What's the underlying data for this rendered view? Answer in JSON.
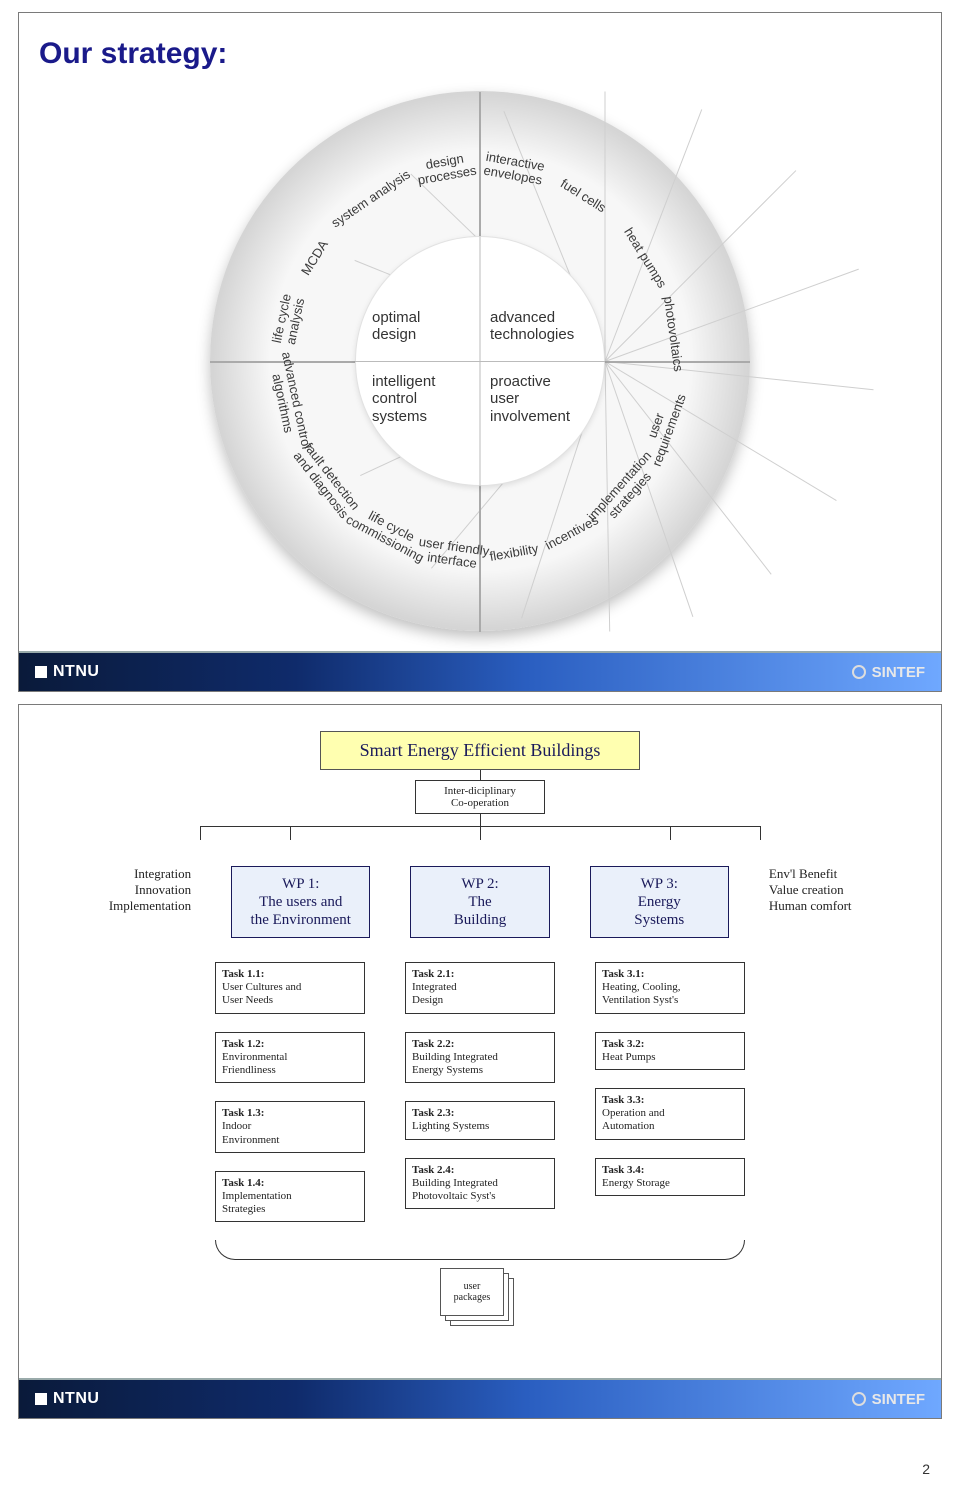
{
  "page_number": "2",
  "footer": {
    "left": "NTNU",
    "right": "SINTEF"
  },
  "slide1": {
    "title": "Our strategy:",
    "core_labels": {
      "tl": "optimal\ndesign",
      "tr": "advanced\ntechnologies",
      "bl": "intelligent\ncontrol\nsystems",
      "br": "proactive\nuser\ninvolvement"
    },
    "segments": [
      {
        "label": "design\nprocesses",
        "angle": -100
      },
      {
        "label": "interactive\nenvelopes",
        "angle": -80
      },
      {
        "label": "fuel cells",
        "angle": -58
      },
      {
        "label": "heat pumps",
        "angle": -32
      },
      {
        "label": "photovoltaics",
        "angle": -8
      },
      {
        "label": "user\nrequirements",
        "angle": 20
      },
      {
        "label": "implementation\nstrategies",
        "angle": 42
      },
      {
        "label": "incentives",
        "angle": 62
      },
      {
        "label": "flexibility",
        "angle": 80
      },
      {
        "label": "user friendly\ninterface",
        "angle": 98
      },
      {
        "label": "life cycle\ncommissioning",
        "angle": 118
      },
      {
        "label": "fault detection\nand diagnosis",
        "angle": 142
      },
      {
        "label": "advanced control\nalgorithms",
        "angle": 168
      },
      {
        "label": "life cycle\nanalysis",
        "angle": 192
      },
      {
        "label": "MCDA",
        "angle": 212
      },
      {
        "label": "system analysis",
        "angle": 236
      }
    ],
    "colors": {
      "title": "#1a1a8a",
      "disc_edge": "#bdbdbd",
      "disc_mid": "#d5d5d5",
      "disc_center": "#f7f7f7"
    }
  },
  "slide2": {
    "top_title": "Smart Energy Efficient Buildings",
    "sub": "Inter-diciplinary\nCo-operation",
    "left_labels": [
      "Integration",
      "Innovation",
      "Implementation"
    ],
    "right_labels": [
      "Env'l Benefit",
      "Value creation",
      "Human comfort"
    ],
    "wps": [
      {
        "id": "WP 1:",
        "text": "The users and\nthe Environment"
      },
      {
        "id": "WP 2:",
        "text": "The\nBuilding"
      },
      {
        "id": "WP 3:",
        "text": "Energy\nSystems"
      }
    ],
    "tasks": [
      [
        {
          "id": "Task 1.1:",
          "text": "User Cultures and\nUser Needs"
        },
        {
          "id": "Task 1.2:",
          "text": "Environmental\nFriendliness"
        },
        {
          "id": "Task 1.3:",
          "text": "Indoor\nEnvironment"
        },
        {
          "id": "Task 1.4:",
          "text": "Implementation\nStrategies"
        }
      ],
      [
        {
          "id": "Task 2.1:",
          "text": "Integrated\nDesign"
        },
        {
          "id": "Task 2.2:",
          "text": "Building Integrated\nEnergy Systems"
        },
        {
          "id": "Task 2.3:",
          "text": "Lighting Systems"
        },
        {
          "id": "Task 2.4:",
          "text": "Building Integrated\nPhotovoltaic Syst's"
        }
      ],
      [
        {
          "id": "Task 3.1:",
          "text": "Heating, Cooling,\nVentilation Syst's"
        },
        {
          "id": "Task 3.2:",
          "text": "Heat Pumps"
        },
        {
          "id": "Task 3.3:",
          "text": "Operation and\nAutomation"
        },
        {
          "id": "Task 3.4:",
          "text": "Energy Storage"
        }
      ]
    ],
    "packages_label": "user\npackages",
    "colors": {
      "topbox_bg": "#ffffb0",
      "wp_bg": "#eaf0fa",
      "wp_border": "#1a1a5a"
    }
  }
}
